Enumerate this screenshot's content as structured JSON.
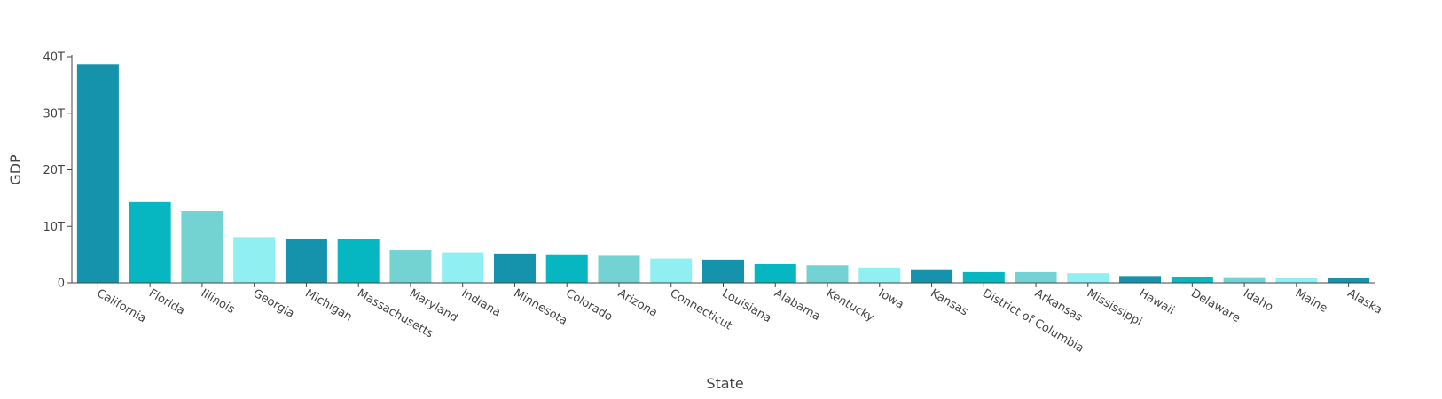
{
  "chart_data": {
    "type": "bar",
    "title": "",
    "xlabel": "State",
    "ylabel": "GDP",
    "ylim": [
      0,
      40000000000000
    ],
    "y_ticks": [
      {
        "value": 0,
        "label": "0"
      },
      {
        "value": 10000000000000,
        "label": "10T"
      },
      {
        "value": 20000000000000,
        "label": "20T"
      },
      {
        "value": 30000000000000,
        "label": "30T"
      },
      {
        "value": 40000000000000,
        "label": "40T"
      }
    ],
    "categories": [
      "California",
      "Florida",
      "Illinois",
      "Georgia",
      "Michigan",
      "Massachusetts",
      "Maryland",
      "Indiana",
      "Minnesota",
      "Colorado",
      "Arizona",
      "Connecticut",
      "Louisiana",
      "Alabama",
      "Kentucky",
      "Iowa",
      "Kansas",
      "District of Columbia",
      "Arkansas",
      "Mississippi",
      "Hawaii",
      "Delaware",
      "Idaho",
      "Maine",
      "Alaska"
    ],
    "values": [
      38700000000000,
      14300000000000,
      12700000000000,
      8100000000000,
      7800000000000,
      7700000000000,
      5800000000000,
      5400000000000,
      5200000000000,
      4900000000000,
      4800000000000,
      4300000000000,
      4100000000000,
      3300000000000,
      3100000000000,
      2700000000000,
      2400000000000,
      1900000000000,
      1900000000000,
      1700000000000,
      1200000000000,
      1100000000000,
      1000000000000,
      900000000000,
      900000000000
    ],
    "colors": [
      "#1592ac",
      "#06b6c1",
      "#73d3d3",
      "#8feff1"
    ],
    "grid": false
  }
}
